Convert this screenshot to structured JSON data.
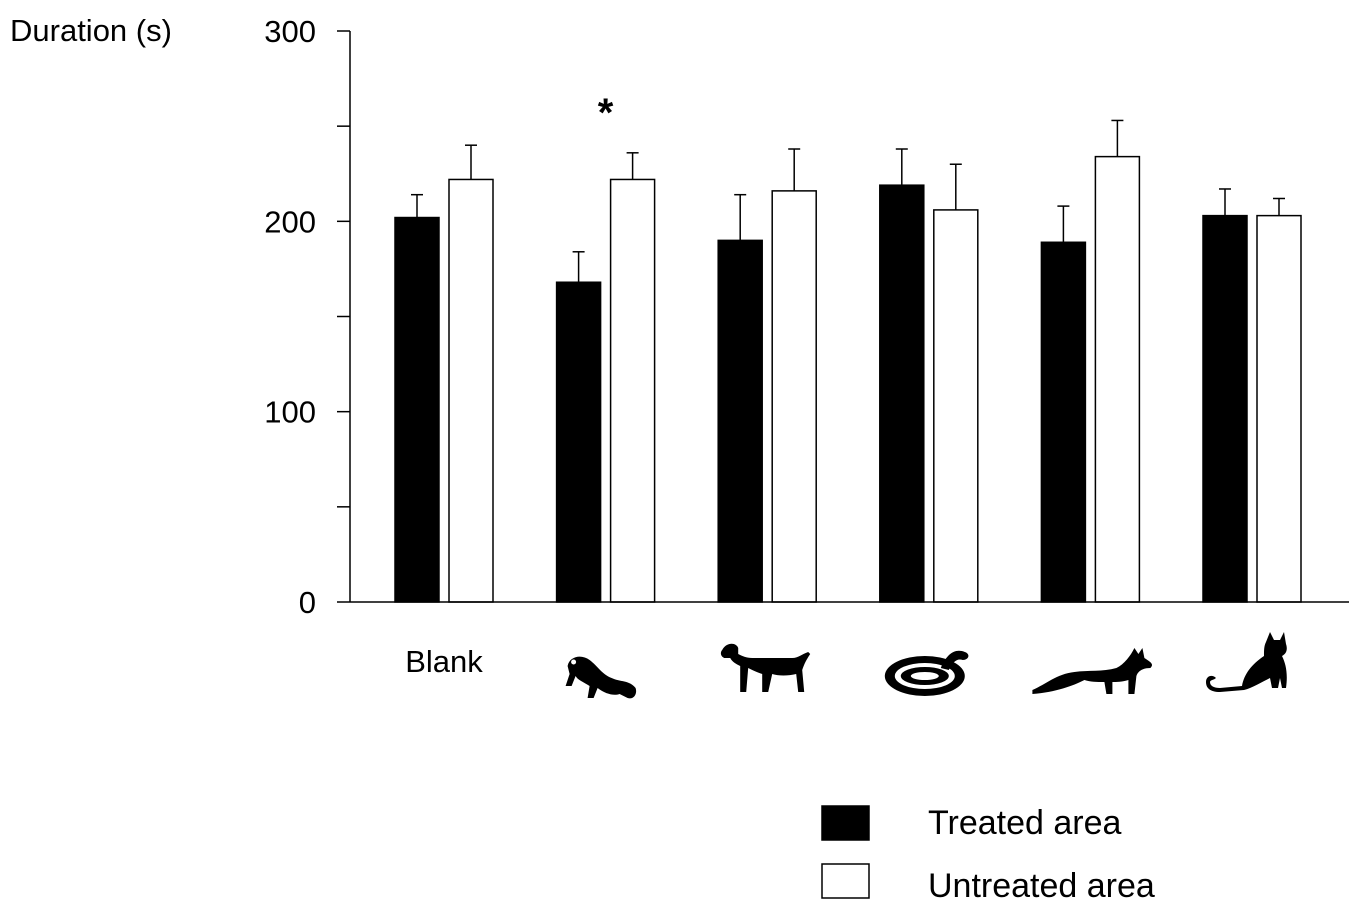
{
  "chart_data": {
    "type": "bar",
    "ylabel": "Duration (s)",
    "ylim": [
      0,
      300
    ],
    "y_ticks": [
      "0",
      "100",
      "200",
      "300"
    ],
    "grid": false,
    "legend_placement": "bottom-right",
    "categories": [
      "Blank",
      "ferret",
      "dog",
      "snake",
      "fox",
      "cat"
    ],
    "category_display": [
      {
        "type": "text",
        "text": "Blank"
      },
      {
        "type": "icon",
        "icon": "ferret-icon"
      },
      {
        "type": "icon",
        "icon": "dog-icon"
      },
      {
        "type": "icon",
        "icon": "snake-icon"
      },
      {
        "type": "icon",
        "icon": "fox-icon"
      },
      {
        "type": "icon",
        "icon": "cat-icon"
      }
    ],
    "series": [
      {
        "name": "Treated area",
        "color": "#000000",
        "values": [
          202,
          168,
          190,
          219,
          189,
          203
        ],
        "errors": [
          12,
          16,
          24,
          19,
          19,
          14
        ]
      },
      {
        "name": "Untreated area",
        "color": "#ffffff",
        "values": [
          222,
          222,
          216,
          206,
          234,
          203
        ],
        "errors": [
          18,
          14,
          22,
          24,
          19,
          9
        ]
      }
    ],
    "annotations": [
      {
        "category": "ferret",
        "text": "*"
      }
    ]
  }
}
